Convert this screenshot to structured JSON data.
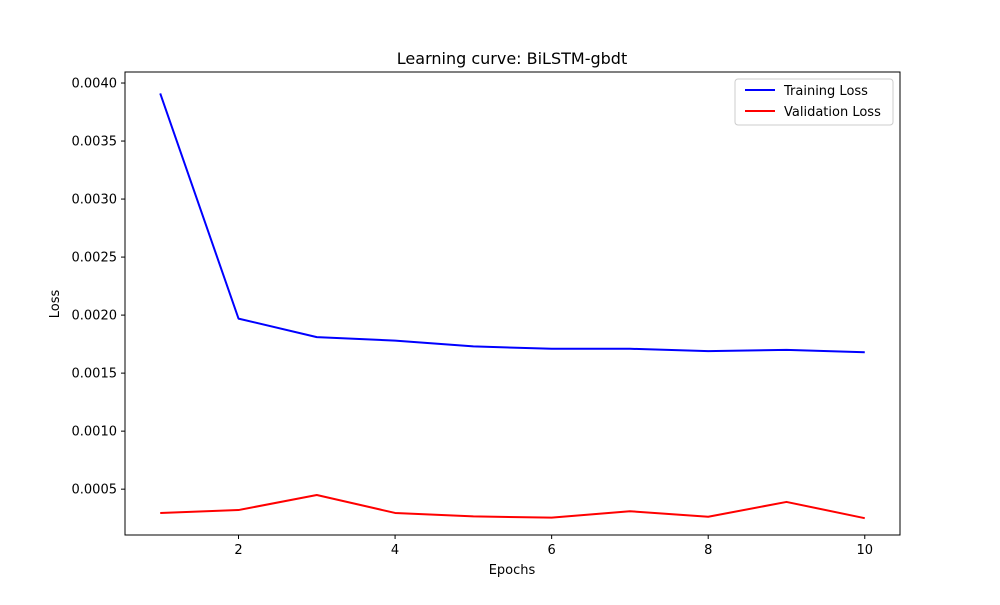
{
  "chart_data": {
    "type": "line",
    "title": "Learning curve: BiLSTM-gbdt",
    "xlabel": "Epochs",
    "ylabel": "Loss",
    "x": [
      1,
      2,
      3,
      4,
      5,
      6,
      7,
      8,
      9,
      10
    ],
    "xlim": [
      0.55,
      10.45
    ],
    "ylim": [
      0.000105,
      0.004095
    ],
    "xticks": [
      2,
      4,
      6,
      8,
      10
    ],
    "xtick_labels": [
      "2",
      "4",
      "6",
      "8",
      "10"
    ],
    "yticks": [
      0.0005,
      0.001,
      0.0015,
      0.002,
      0.0025,
      0.003,
      0.0035,
      0.004
    ],
    "ytick_labels": [
      "0.0005",
      "0.0010",
      "0.0015",
      "0.0020",
      "0.0025",
      "0.0030",
      "0.0035",
      "0.0040"
    ],
    "grid": false,
    "legend_position": "top-right",
    "series": [
      {
        "name": "Training Loss",
        "color": "#0000ff",
        "values": [
          0.00391,
          0.00197,
          0.00181,
          0.00178,
          0.00173,
          0.00171,
          0.00171,
          0.00169,
          0.0017,
          0.00168
        ]
      },
      {
        "name": "Validation Loss",
        "color": "#ff0000",
        "values": [
          0.000295,
          0.00032,
          0.00045,
          0.000295,
          0.000265,
          0.000255,
          0.00031,
          0.000262,
          0.00039,
          0.00025
        ]
      }
    ]
  }
}
